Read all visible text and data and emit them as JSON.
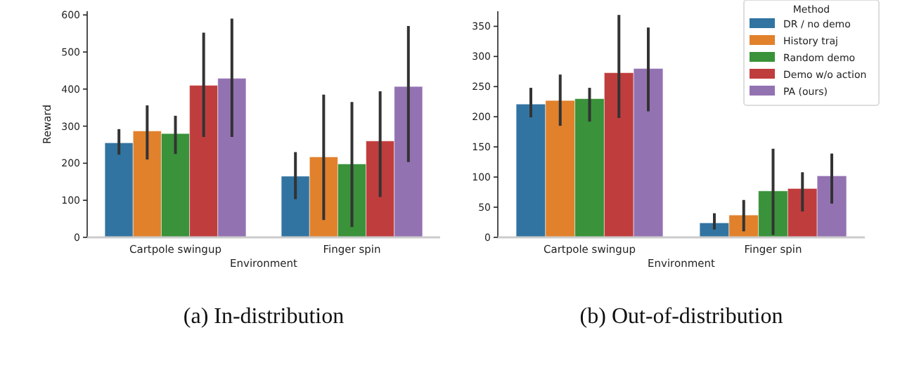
{
  "chart_data": [
    {
      "type": "bar",
      "title": "(a) In-distribution",
      "xlabel": "Environment",
      "ylabel": "Reward",
      "categories": [
        "Cartpole swingup",
        "Finger spin"
      ],
      "ylim": [
        0,
        610
      ],
      "yticks": [
        0,
        100,
        200,
        300,
        400,
        500,
        600
      ],
      "grid": false,
      "legend": false,
      "series": [
        {
          "color": "#3274a1",
          "values": [
            255,
            165
          ],
          "errors": [
            [
              223,
              292
            ],
            [
              103,
              230
            ]
          ]
        },
        {
          "color": "#e1812c",
          "values": [
            287,
            217
          ],
          "errors": [
            [
              210,
              356
            ],
            [
              47,
              385
            ]
          ]
        },
        {
          "color": "#3a923a",
          "values": [
            280,
            198
          ],
          "errors": [
            [
              225,
              328
            ],
            [
              28,
              365
            ]
          ]
        },
        {
          "color": "#c03d3e",
          "values": [
            410,
            260
          ],
          "errors": [
            [
              271,
              552
            ],
            [
              109,
              394
            ]
          ]
        },
        {
          "color": "#9372b2",
          "values": [
            429,
            407
          ],
          "errors": [
            [
              271,
              590
            ],
            [
              203,
              570
            ]
          ]
        }
      ]
    },
    {
      "type": "bar",
      "title": "(b) Out-of-distribution",
      "xlabel": "Environment",
      "categories": [
        "Cartpole swingup",
        "Finger spin"
      ],
      "ylim": [
        0,
        375
      ],
      "yticks": [
        0,
        50,
        100,
        150,
        200,
        250,
        300,
        350
      ],
      "grid": false,
      "legend": "top right",
      "legend_title": "Method",
      "series": [
        {
          "name": "DR / no demo",
          "color": "#3274a1",
          "values": [
            221,
            24
          ],
          "errors": [
            [
              199,
              248
            ],
            [
              13,
              40
            ]
          ]
        },
        {
          "name": "History traj",
          "color": "#e1812c",
          "values": [
            227,
            37
          ],
          "errors": [
            [
              185,
              270
            ],
            [
              10,
              62
            ]
          ]
        },
        {
          "name": "Random demo",
          "color": "#3a923a",
          "values": [
            230,
            77
          ],
          "errors": [
            [
              192,
              248
            ],
            [
              4,
              147
            ]
          ]
        },
        {
          "name": "Demo w/o action",
          "color": "#c03d3e",
          "values": [
            273,
            81
          ],
          "errors": [
            [
              198,
              369
            ],
            [
              43,
              108
            ]
          ]
        },
        {
          "name": "PA (ours)",
          "color": "#9372b2",
          "values": [
            280,
            102
          ],
          "errors": [
            [
              209,
              348
            ],
            [
              56,
              139
            ]
          ]
        }
      ]
    }
  ]
}
